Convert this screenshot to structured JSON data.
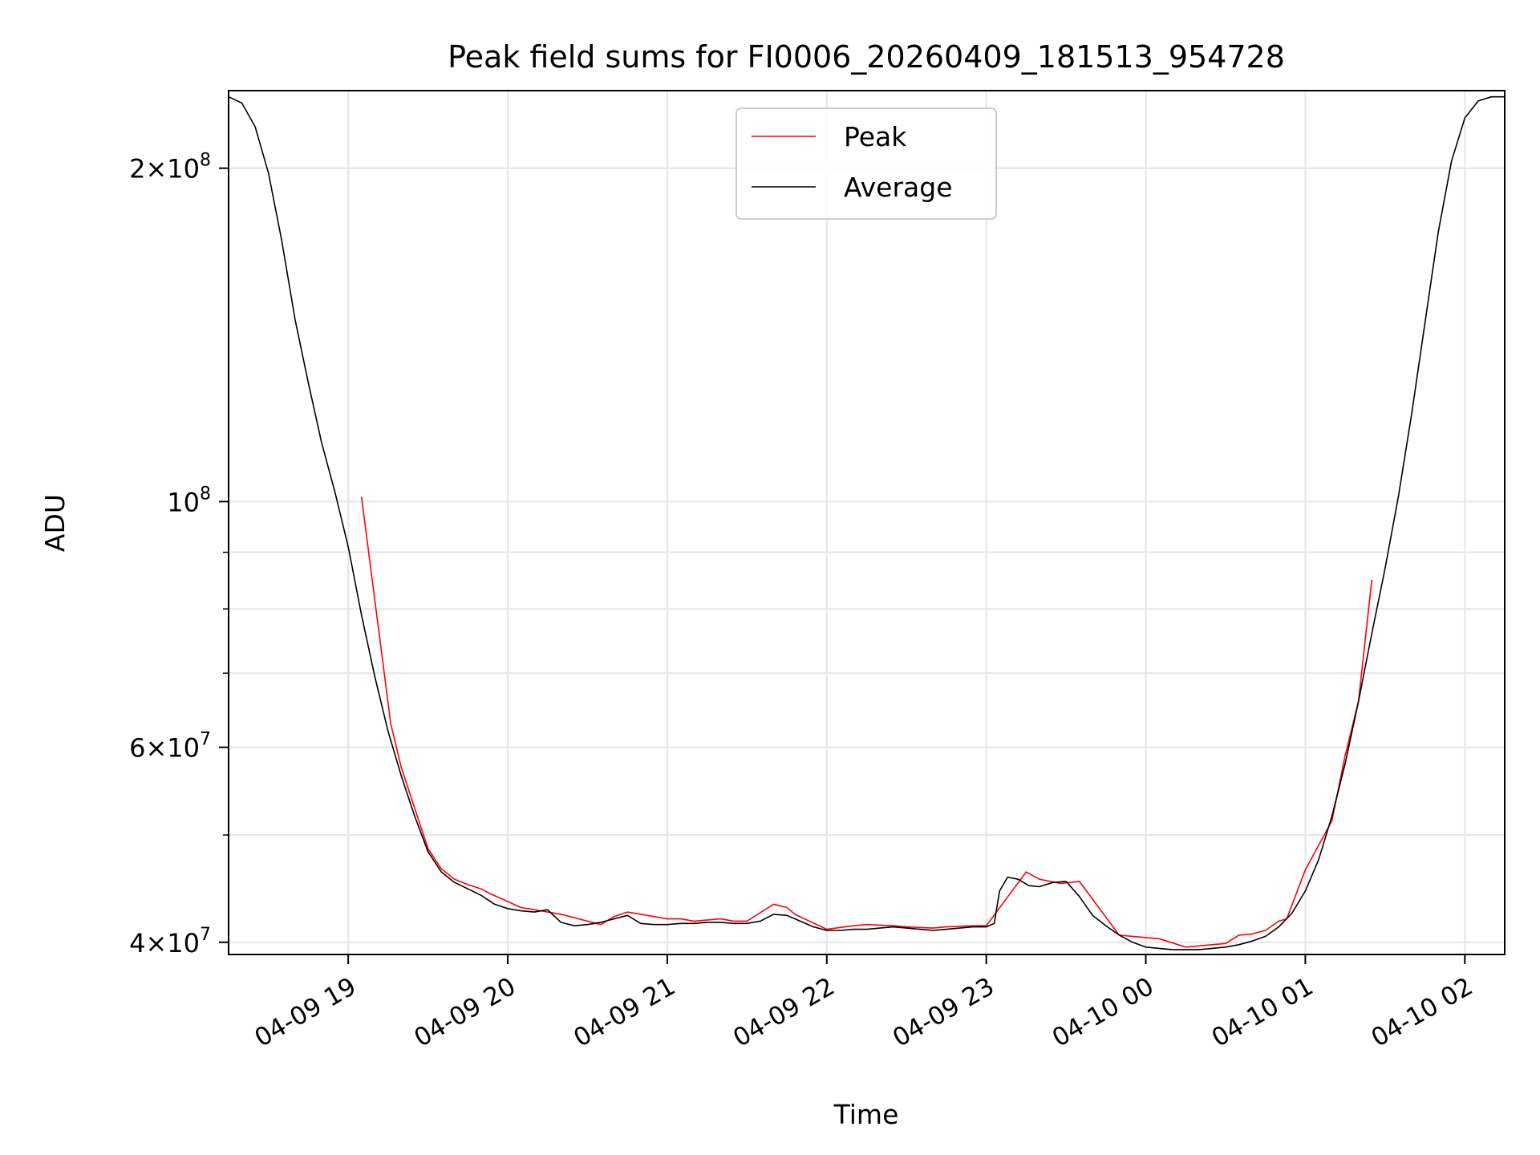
{
  "chart_data": {
    "type": "line",
    "title": "Peak field sums for FI0006_20260409_181513_954728",
    "xlabel": "Time",
    "ylabel": "ADU",
    "xlim": [
      "2026-04-09 18:15",
      "2026-04-10 02:15"
    ],
    "ylim": [
      39000000,
      235000000
    ],
    "yscale": "log",
    "grid": true,
    "legend_position": "top-center",
    "x_ticks": [
      {
        "t": "2026-04-09 19:00",
        "label": "04-09 19"
      },
      {
        "t": "2026-04-09 20:00",
        "label": "04-09 20"
      },
      {
        "t": "2026-04-09 21:00",
        "label": "04-09 21"
      },
      {
        "t": "2026-04-09 22:00",
        "label": "04-09 22"
      },
      {
        "t": "2026-04-09 23:00",
        "label": "04-09 23"
      },
      {
        "t": "2026-04-10 00:00",
        "label": "04-10 00"
      },
      {
        "t": "2026-04-10 01:00",
        "label": "04-10 01"
      },
      {
        "t": "2026-04-10 02:00",
        "label": "04-10 02"
      }
    ],
    "y_major_ticks": [
      {
        "value": 40000000,
        "mantissa": "4",
        "exp": "7"
      },
      {
        "value": 60000000,
        "mantissa": "6",
        "exp": "7"
      },
      {
        "value": 100000000,
        "mantissa": "",
        "exp": "8"
      },
      {
        "value": 200000000,
        "mantissa": "2",
        "exp": "8"
      }
    ],
    "y_minor_ticks": [
      50000000,
      70000000,
      80000000,
      90000000
    ],
    "series": [
      {
        "name": "Peak",
        "color": "#ff0000",
        "points": [
          [
            "2026-04-09 19:05",
            101000000
          ],
          [
            "2026-04-09 19:16",
            63000000
          ],
          [
            "2026-04-09 19:20",
            57500000
          ],
          [
            "2026-04-09 19:30",
            48600000
          ],
          [
            "2026-04-09 19:35",
            46600000
          ],
          [
            "2026-04-09 19:40",
            45600000
          ],
          [
            "2026-04-09 19:45",
            45100000
          ],
          [
            "2026-04-09 19:50",
            44700000
          ],
          [
            "2026-04-09 19:53",
            44300000
          ],
          [
            "2026-04-09 20:05",
            43000000
          ],
          [
            "2026-04-09 20:10",
            42800000
          ],
          [
            "2026-04-09 20:20",
            42400000
          ],
          [
            "2026-04-09 20:35",
            41500000
          ],
          [
            "2026-04-09 20:40",
            42200000
          ],
          [
            "2026-04-09 20:45",
            42600000
          ],
          [
            "2026-04-09 20:55",
            42200000
          ],
          [
            "2026-04-09 21:00",
            42000000
          ],
          [
            "2026-04-09 21:05",
            42000000
          ],
          [
            "2026-04-09 21:10",
            41800000
          ],
          [
            "2026-04-09 21:20",
            42000000
          ],
          [
            "2026-04-09 21:25",
            41800000
          ],
          [
            "2026-04-09 21:30",
            41800000
          ],
          [
            "2026-04-09 21:40",
            43300000
          ],
          [
            "2026-04-09 21:45",
            43000000
          ],
          [
            "2026-04-09 21:48",
            42400000
          ],
          [
            "2026-04-09 22:00",
            41100000
          ],
          [
            "2026-04-09 22:10",
            41400000
          ],
          [
            "2026-04-09 22:15",
            41500000
          ],
          [
            "2026-04-09 22:25",
            41400000
          ],
          [
            "2026-04-09 22:30",
            41300000
          ],
          [
            "2026-04-09 22:40",
            41200000
          ],
          [
            "2026-04-09 22:45",
            41300000
          ],
          [
            "2026-04-09 22:55",
            41400000
          ],
          [
            "2026-04-09 23:00",
            41400000
          ],
          [
            "2026-04-09 23:15",
            46300000
          ],
          [
            "2026-04-09 23:20",
            45600000
          ],
          [
            "2026-04-09 23:28",
            45200000
          ],
          [
            "2026-04-09 23:35",
            45400000
          ],
          [
            "2026-04-09 23:50",
            40600000
          ],
          [
            "2026-04-09 23:55",
            40500000
          ],
          [
            "2026-04-10 00:05",
            40300000
          ],
          [
            "2026-04-10 00:15",
            39600000
          ],
          [
            "2026-04-10 00:25",
            39800000
          ],
          [
            "2026-04-10 00:30",
            39900000
          ],
          [
            "2026-04-10 00:35",
            40600000
          ],
          [
            "2026-04-10 00:40",
            40700000
          ],
          [
            "2026-04-10 00:45",
            41000000
          ],
          [
            "2026-04-10 00:50",
            41800000
          ],
          [
            "2026-04-10 00:53",
            42000000
          ],
          [
            "2026-04-10 01:00",
            46500000
          ],
          [
            "2026-04-10 01:10",
            51500000
          ],
          [
            "2026-04-10 01:15",
            59000000
          ],
          [
            "2026-04-10 01:20",
            66000000
          ],
          [
            "2026-04-10 01:25",
            85000000
          ]
        ]
      },
      {
        "name": "Average",
        "color": "#000000",
        "points": [
          [
            "2026-04-09 18:15",
            232000000
          ],
          [
            "2026-04-09 18:20",
            229000000
          ],
          [
            "2026-04-09 18:25",
            218000000
          ],
          [
            "2026-04-09 18:30",
            198000000
          ],
          [
            "2026-04-09 18:35",
            172000000
          ],
          [
            "2026-04-09 18:40",
            146000000
          ],
          [
            "2026-04-09 18:45",
            128000000
          ],
          [
            "2026-04-09 18:50",
            113000000
          ],
          [
            "2026-04-09 18:55",
            102000000
          ],
          [
            "2026-04-09 19:00",
            91000000
          ],
          [
            "2026-04-09 19:05",
            79000000
          ],
          [
            "2026-04-09 19:10",
            69500000
          ],
          [
            "2026-04-09 19:15",
            62000000
          ],
          [
            "2026-04-09 19:20",
            56500000
          ],
          [
            "2026-04-09 19:25",
            52000000
          ],
          [
            "2026-04-09 19:30",
            48300000
          ],
          [
            "2026-04-09 19:35",
            46300000
          ],
          [
            "2026-04-09 19:40",
            45300000
          ],
          [
            "2026-04-09 19:45",
            44700000
          ],
          [
            "2026-04-09 19:50",
            44100000
          ],
          [
            "2026-04-09 19:55",
            43300000
          ],
          [
            "2026-04-09 20:00",
            42900000
          ],
          [
            "2026-04-09 20:05",
            42700000
          ],
          [
            "2026-04-09 20:10",
            42600000
          ],
          [
            "2026-04-09 20:15",
            42800000
          ],
          [
            "2026-04-09 20:20",
            41700000
          ],
          [
            "2026-04-09 20:25",
            41400000
          ],
          [
            "2026-04-09 20:30",
            41500000
          ],
          [
            "2026-04-09 20:35",
            41700000
          ],
          [
            "2026-04-09 20:40",
            42000000
          ],
          [
            "2026-04-09 20:45",
            42300000
          ],
          [
            "2026-04-09 20:50",
            41600000
          ],
          [
            "2026-04-09 20:55",
            41500000
          ],
          [
            "2026-04-09 21:00",
            41500000
          ],
          [
            "2026-04-09 21:05",
            41600000
          ],
          [
            "2026-04-09 21:10",
            41600000
          ],
          [
            "2026-04-09 21:15",
            41700000
          ],
          [
            "2026-04-09 21:20",
            41700000
          ],
          [
            "2026-04-09 21:25",
            41600000
          ],
          [
            "2026-04-09 21:30",
            41600000
          ],
          [
            "2026-04-09 21:35",
            41800000
          ],
          [
            "2026-04-09 21:40",
            42400000
          ],
          [
            "2026-04-09 21:45",
            42300000
          ],
          [
            "2026-04-09 21:50",
            41800000
          ],
          [
            "2026-04-09 21:55",
            41300000
          ],
          [
            "2026-04-09 22:00",
            41000000
          ],
          [
            "2026-04-09 22:05",
            41000000
          ],
          [
            "2026-04-09 22:10",
            41100000
          ],
          [
            "2026-04-09 22:15",
            41100000
          ],
          [
            "2026-04-09 22:20",
            41200000
          ],
          [
            "2026-04-09 22:25",
            41300000
          ],
          [
            "2026-04-09 22:30",
            41200000
          ],
          [
            "2026-04-09 22:35",
            41100000
          ],
          [
            "2026-04-09 22:40",
            41000000
          ],
          [
            "2026-04-09 22:45",
            41100000
          ],
          [
            "2026-04-09 22:50",
            41200000
          ],
          [
            "2026-04-09 22:55",
            41300000
          ],
          [
            "2026-04-09 23:00",
            41300000
          ],
          [
            "2026-04-09 23:03",
            41600000
          ],
          [
            "2026-04-09 23:05",
            44500000
          ],
          [
            "2026-04-09 23:08",
            45800000
          ],
          [
            "2026-04-09 23:12",
            45600000
          ],
          [
            "2026-04-09 23:16",
            45000000
          ],
          [
            "2026-04-09 23:20",
            44900000
          ],
          [
            "2026-04-09 23:25",
            45300000
          ],
          [
            "2026-04-09 23:30",
            45400000
          ],
          [
            "2026-04-09 23:35",
            44000000
          ],
          [
            "2026-04-09 23:40",
            42300000
          ],
          [
            "2026-04-09 23:45",
            41400000
          ],
          [
            "2026-04-09 23:50",
            40600000
          ],
          [
            "2026-04-09 23:55",
            40000000
          ],
          [
            "2026-04-10 00:00",
            39600000
          ],
          [
            "2026-04-10 00:05",
            39500000
          ],
          [
            "2026-04-10 00:10",
            39400000
          ],
          [
            "2026-04-10 00:15",
            39400000
          ],
          [
            "2026-04-10 00:20",
            39400000
          ],
          [
            "2026-04-10 00:25",
            39500000
          ],
          [
            "2026-04-10 00:30",
            39600000
          ],
          [
            "2026-04-10 00:35",
            39800000
          ],
          [
            "2026-04-10 00:40",
            40100000
          ],
          [
            "2026-04-10 00:45",
            40500000
          ],
          [
            "2026-04-10 00:50",
            41300000
          ],
          [
            "2026-04-10 00:55",
            42500000
          ],
          [
            "2026-04-10 01:00",
            44500000
          ],
          [
            "2026-04-10 01:05",
            47500000
          ],
          [
            "2026-04-10 01:10",
            52000000
          ],
          [
            "2026-04-10 01:15",
            58000000
          ],
          [
            "2026-04-10 01:20",
            66000000
          ],
          [
            "2026-04-10 01:25",
            76000000
          ],
          [
            "2026-04-10 01:30",
            87000000
          ],
          [
            "2026-04-10 01:35",
            101000000
          ],
          [
            "2026-04-10 01:40",
            120000000
          ],
          [
            "2026-04-10 01:45",
            145000000
          ],
          [
            "2026-04-10 01:50",
            175000000
          ],
          [
            "2026-04-10 01:55",
            203000000
          ],
          [
            "2026-04-10 02:00",
            222000000
          ],
          [
            "2026-04-10 02:05",
            230000000
          ],
          [
            "2026-04-10 02:10",
            232000000
          ],
          [
            "2026-04-10 02:15",
            232000000
          ]
        ]
      }
    ]
  }
}
